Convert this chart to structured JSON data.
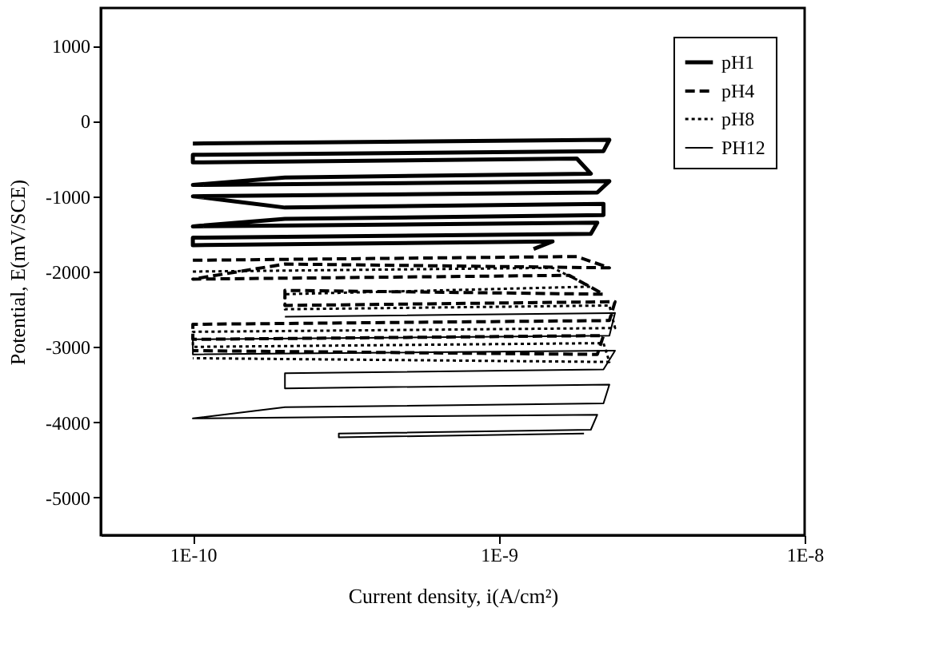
{
  "chart_data": {
    "type": "line",
    "xlabel": "Current density, i(A/cm²)",
    "ylabel": "Potential, E(mV/SCE)",
    "log": "x",
    "xlim": [
      5e-11,
      1e-08
    ],
    "xticks": [
      {
        "value": 1e-10,
        "label": "1E-10"
      },
      {
        "value": 1e-09,
        "label": "1E-9"
      },
      {
        "value": 1e-08,
        "label": "1E-8"
      }
    ],
    "ylim": [
      -5500,
      1500
    ],
    "yticks": [
      -5000,
      -4000,
      -3000,
      -2000,
      -1000,
      0,
      1000
    ],
    "grid": false,
    "legend": "top right",
    "marker": "none",
    "series": [
      {
        "name": "pH1",
        "color": "#000000",
        "line_style": "solid",
        "x": [
          1e-10,
          2.3e-09,
          2.2e-09,
          1e-10,
          1e-10,
          1.8e-09,
          2e-09,
          2e-10,
          1e-10,
          2.3e-09,
          2.1e-09,
          1e-10,
          2e-10,
          2.2e-09,
          2.2e-09,
          2e-10,
          1e-10,
          2.1e-09,
          2e-09,
          1e-10,
          1e-10,
          1.5e-09,
          1.3e-09
        ],
        "values": [
          -300,
          -250,
          -400,
          -450,
          -550,
          -500,
          -700,
          -750,
          -850,
          -800,
          -950,
          -1000,
          -1150,
          -1100,
          -1250,
          -1300,
          -1400,
          -1350,
          -1500,
          -1550,
          -1650,
          -1600,
          -1700
        ]
      },
      {
        "name": "pH4",
        "color": "#000000",
        "line_style": "dashed",
        "x": [
          1e-10,
          1.8e-09,
          2.3e-09,
          2e-10,
          1e-10,
          1.7e-09,
          2.2e-09,
          2e-10,
          2e-10,
          2.4e-09,
          2.3e-09,
          1e-10,
          1e-10,
          2.2e-09,
          2.1e-09,
          1e-10
        ],
        "values": [
          -1850,
          -1800,
          -1950,
          -1900,
          -2100,
          -2050,
          -2300,
          -2250,
          -2450,
          -2400,
          -2650,
          -2700,
          -2900,
          -2850,
          -3100,
          -3050
        ]
      },
      {
        "name": "pH8",
        "color": "#000000",
        "line_style": "dotted",
        "x": [
          1e-10,
          1.5e-09,
          2e-09,
          2e-10,
          2e-10,
          2.3e-09,
          2.4e-09,
          1e-10,
          1e-10,
          2.2e-09,
          2.3e-09,
          1e-10
        ],
        "values": [
          -2000,
          -1950,
          -2200,
          -2300,
          -2500,
          -2450,
          -2750,
          -2800,
          -3000,
          -2950,
          -3200,
          -3150
        ]
      },
      {
        "name": "PH12",
        "color": "#000000",
        "line_style": "solid",
        "x": [
          2e-10,
          2.4e-09,
          2.3e-09,
          1e-10,
          1e-10,
          2.4e-09,
          2.2e-09,
          2e-10,
          2e-10,
          2.3e-09,
          2.2e-09,
          2e-10,
          1e-10,
          2.1e-09,
          2e-09,
          3e-10,
          3e-10,
          1.9e-09
        ],
        "values": [
          -2600,
          -2550,
          -2850,
          -2900,
          -3100,
          -3050,
          -3300,
          -3350,
          -3550,
          -3500,
          -3750,
          -3800,
          -3950,
          -3900,
          -4100,
          -4150,
          -4200,
          -4150
        ]
      }
    ]
  }
}
